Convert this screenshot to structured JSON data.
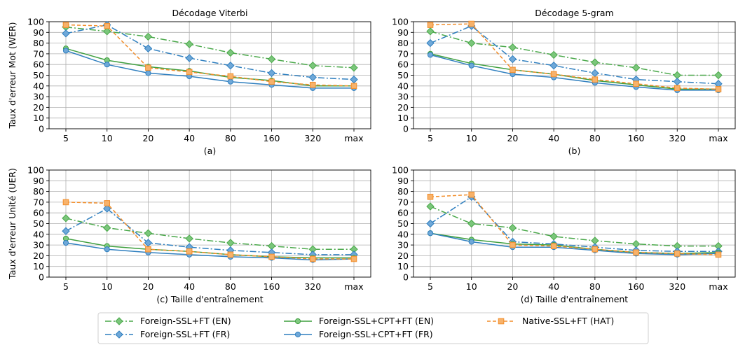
{
  "chart_data": [
    {
      "type": "line",
      "title": "Décodage Viterbi",
      "subtitle": "(a)",
      "xlabel": "",
      "ylabel": "Taux d'erreur Mot (WER)",
      "categories": [
        "5",
        "10",
        "20",
        "40",
        "80",
        "160",
        "320",
        "max"
      ],
      "ylim": [
        0,
        100
      ],
      "yticks": [
        "0",
        "10",
        "20",
        "30",
        "40",
        "50",
        "60",
        "70",
        "80",
        "90",
        "100"
      ],
      "grid": true,
      "series": [
        {
          "name": "Foreign-SSL+FT (EN)",
          "values": [
            95,
            91,
            86,
            79,
            71,
            65,
            59,
            57
          ]
        },
        {
          "name": "Foreign-SSL+FT (FR)",
          "values": [
            89,
            97,
            75,
            66,
            59,
            52,
            48,
            46
          ]
        },
        {
          "name": "Foreign-SSL+CPT+FT (EN)",
          "values": [
            75,
            64,
            58,
            54,
            48,
            45,
            40,
            40
          ]
        },
        {
          "name": "Foreign-SSL+CPT+FT (FR)",
          "values": [
            73,
            60,
            52,
            49,
            44,
            41,
            38,
            38
          ]
        },
        {
          "name": "Native-SSL+FT (HAT)",
          "values": [
            97,
            96,
            57,
            53,
            49,
            44,
            41,
            40
          ]
        }
      ]
    },
    {
      "type": "line",
      "title": "Décodage 5-gram",
      "subtitle": "(b)",
      "xlabel": "",
      "ylabel": "",
      "categories": [
        "5",
        "10",
        "20",
        "40",
        "80",
        "160",
        "320",
        "max"
      ],
      "ylim": [
        0,
        100
      ],
      "yticks": [
        "0",
        "10",
        "20",
        "30",
        "40",
        "50",
        "60",
        "70",
        "80",
        "90",
        "100"
      ],
      "grid": true,
      "series": [
        {
          "name": "Foreign-SSL+FT (EN)",
          "values": [
            91,
            80,
            76,
            69,
            62,
            57,
            50,
            50
          ]
        },
        {
          "name": "Foreign-SSL+FT (FR)",
          "values": [
            80,
            96,
            65,
            59,
            52,
            46,
            44,
            42
          ]
        },
        {
          "name": "Foreign-SSL+CPT+FT (EN)",
          "values": [
            70,
            61,
            55,
            51,
            45,
            41,
            37,
            37
          ]
        },
        {
          "name": "Foreign-SSL+CPT+FT (FR)",
          "values": [
            69,
            59,
            51,
            48,
            43,
            39,
            36,
            36
          ]
        },
        {
          "name": "Native-SSL+FT (HAT)",
          "values": [
            97,
            98,
            55,
            51,
            46,
            42,
            38,
            37
          ]
        }
      ]
    },
    {
      "type": "line",
      "title": "",
      "subtitle": "",
      "xlabel": "(c) Taille d'entraînement",
      "ylabel": "Taux d'erreur Unité (UER)",
      "categories": [
        "5",
        "10",
        "20",
        "40",
        "80",
        "160",
        "320",
        "max"
      ],
      "ylim": [
        0,
        100
      ],
      "yticks": [
        "0",
        "10",
        "20",
        "30",
        "40",
        "50",
        "60",
        "70",
        "80",
        "90",
        "100"
      ],
      "grid": true,
      "series": [
        {
          "name": "Foreign-SSL+FT (EN)",
          "values": [
            55,
            46,
            41,
            36,
            32,
            29,
            26,
            26
          ]
        },
        {
          "name": "Foreign-SSL+FT (FR)",
          "values": [
            43,
            64,
            32,
            28,
            25,
            23,
            21,
            21
          ]
        },
        {
          "name": "Foreign-SSL+CPT+FT (EN)",
          "values": [
            36,
            29,
            26,
            24,
            21,
            19,
            18,
            18
          ]
        },
        {
          "name": "Foreign-SSL+CPT+FT (FR)",
          "values": [
            32,
            26,
            23,
            21,
            19,
            18,
            16,
            17
          ]
        },
        {
          "name": "Native-SSL+FT (HAT)",
          "values": [
            70,
            69,
            26,
            24,
            21,
            19,
            17,
            17
          ]
        }
      ]
    },
    {
      "type": "line",
      "title": "",
      "subtitle": "",
      "xlabel": "(d) Taille d'entraînement",
      "ylabel": "",
      "categories": [
        "5",
        "10",
        "20",
        "40",
        "80",
        "160",
        "320",
        "max"
      ],
      "ylim": [
        0,
        100
      ],
      "yticks": [
        "0",
        "10",
        "20",
        "30",
        "40",
        "50",
        "60",
        "70",
        "80",
        "90",
        "100"
      ],
      "grid": true,
      "series": [
        {
          "name": "Foreign-SSL+FT (EN)",
          "values": [
            66,
            50,
            46,
            38,
            34,
            31,
            29,
            29
          ]
        },
        {
          "name": "Foreign-SSL+FT (FR)",
          "values": [
            50,
            75,
            33,
            31,
            28,
            25,
            24,
            24
          ]
        },
        {
          "name": "Foreign-SSL+CPT+FT (EN)",
          "values": [
            41,
            35,
            31,
            30,
            26,
            23,
            22,
            23
          ]
        },
        {
          "name": "Foreign-SSL+CPT+FT (FR)",
          "values": [
            41,
            33,
            28,
            28,
            25,
            22,
            21,
            22
          ]
        },
        {
          "name": "Native-SSL+FT (HAT)",
          "values": [
            75,
            77,
            30,
            29,
            26,
            23,
            22,
            21
          ]
        }
      ]
    }
  ],
  "legend": {
    "placement": "bottom-center",
    "items": [
      {
        "label": "Foreign-SSL+FT (EN)",
        "color": "#4aa84a",
        "dash": "dashdot",
        "marker": "diamond"
      },
      {
        "label": "Foreign-SSL+CPT+FT (EN)",
        "color": "#3f9f3f",
        "dash": "solid",
        "marker": "circle"
      },
      {
        "label": "Native-SSL+FT (HAT)",
        "color": "#f28e2b",
        "dash": "dashed",
        "marker": "square"
      },
      {
        "label": "Foreign-SSL+FT (FR)",
        "color": "#2f7fbf",
        "dash": "dashdot",
        "marker": "diamond"
      },
      {
        "label": "Foreign-SSL+CPT+FT (FR)",
        "color": "#2f7fbf",
        "dash": "solid",
        "marker": "circle"
      }
    ]
  },
  "colors": {
    "en_ft": "#4aa84a",
    "en_ft_fill": "#7bc67b",
    "fr_ft": "#2f7fbf",
    "fr_ft_fill": "#6fa8d8",
    "en_cpt": "#3f9f3f",
    "en_cpt_fill": "#7fc97f",
    "fr_cpt": "#2f7fbf",
    "fr_cpt_fill": "#6fa8d8",
    "hat": "#f28e2b",
    "hat_fill": "#f7b26b",
    "grid": "#b0b0b0",
    "axis": "#000000"
  }
}
